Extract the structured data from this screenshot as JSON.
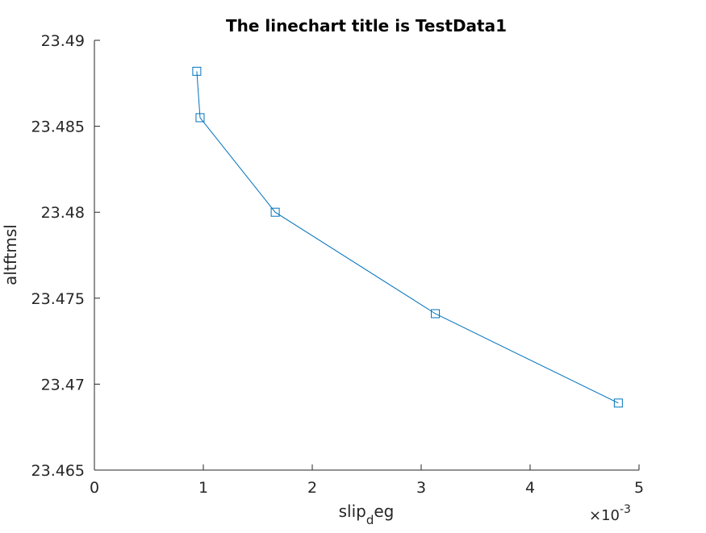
{
  "chart_data": {
    "type": "line",
    "title": "The linechart title is TestData1",
    "xlabel": {
      "main": "slip",
      "subscript": "d",
      "rest": "eg"
    },
    "ylabel": "altftmsl",
    "x_multiplier": {
      "prefix": "×10",
      "exponent": "-3"
    },
    "xlim": [
      0,
      0.005
    ],
    "ylim": [
      23.465,
      23.49
    ],
    "x_ticks": [
      0,
      0.001,
      0.002,
      0.003,
      0.004,
      0.005
    ],
    "x_tick_labels": [
      "0",
      "1",
      "2",
      "3",
      "4",
      "5"
    ],
    "y_ticks": [
      23.465,
      23.47,
      23.475,
      23.48,
      23.485,
      23.49
    ],
    "y_tick_labels": [
      "23.465",
      "23.47",
      "23.475",
      "23.48",
      "23.485",
      "23.49"
    ],
    "grid": false,
    "series": [
      {
        "marker": "square",
        "color": "#0072BD",
        "x": [
          0.00094,
          0.00097,
          0.00166,
          0.00313,
          0.00481
        ],
        "y": [
          23.4882,
          23.4855,
          23.48,
          23.4741,
          23.4689
        ]
      }
    ]
  }
}
